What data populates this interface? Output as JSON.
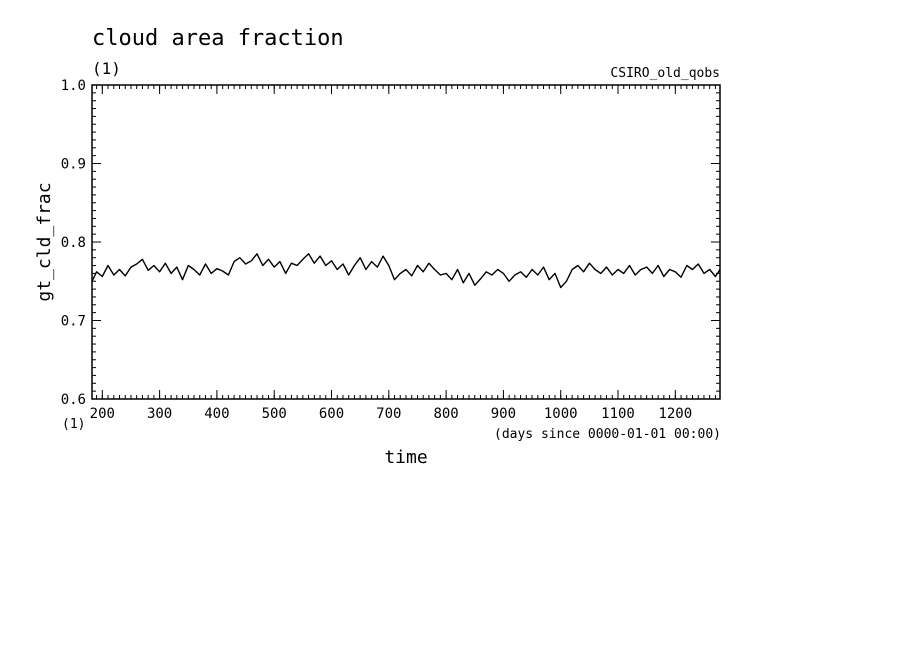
{
  "chart_data": {
    "type": "line",
    "title": "cloud area fraction",
    "units": "(1)",
    "dataset_label": "CSIRO_old_qobs",
    "xlabel": "time",
    "x_units": "(days since 0000-01-01 00:00)",
    "ylabel": "gt_cld_frac",
    "y_units": "(1)",
    "xlim": [
      182,
      1278
    ],
    "ylim": [
      0.6,
      1.0
    ],
    "x_ticks": [
      200,
      300,
      400,
      500,
      600,
      700,
      800,
      900,
      1000,
      1100,
      1200
    ],
    "y_ticks": [
      0.6,
      0.7,
      0.8,
      0.9,
      1.0
    ],
    "y_tick_labels": [
      "0.6",
      "0.7",
      "0.8",
      "0.9",
      "1.0"
    ],
    "grid": false,
    "series": [
      {
        "x": [
          182,
          190,
          200,
          210,
          220,
          230,
          240,
          250,
          260,
          270,
          280,
          290,
          300,
          310,
          320,
          330,
          340,
          350,
          360,
          370,
          380,
          390,
          400,
          410,
          420,
          430,
          440,
          450,
          460,
          470,
          480,
          490,
          500,
          510,
          520,
          530,
          540,
          550,
          560,
          570,
          580,
          590,
          600,
          610,
          620,
          630,
          640,
          650,
          660,
          670,
          680,
          690,
          700,
          710,
          720,
          730,
          740,
          750,
          760,
          770,
          780,
          790,
          800,
          810,
          820,
          830,
          840,
          850,
          860,
          870,
          880,
          890,
          900,
          910,
          920,
          930,
          940,
          950,
          960,
          970,
          980,
          990,
          1000,
          1010,
          1020,
          1030,
          1040,
          1050,
          1060,
          1070,
          1080,
          1090,
          1100,
          1110,
          1120,
          1130,
          1140,
          1150,
          1160,
          1170,
          1180,
          1190,
          1200,
          1210,
          1220,
          1230,
          1240,
          1250,
          1260,
          1270,
          1278
        ],
        "values": [
          0.75,
          0.762,
          0.756,
          0.77,
          0.758,
          0.765,
          0.757,
          0.768,
          0.772,
          0.778,
          0.764,
          0.77,
          0.762,
          0.773,
          0.76,
          0.768,
          0.752,
          0.77,
          0.765,
          0.758,
          0.772,
          0.76,
          0.766,
          0.763,
          0.758,
          0.775,
          0.78,
          0.772,
          0.776,
          0.785,
          0.77,
          0.778,
          0.768,
          0.775,
          0.76,
          0.773,
          0.77,
          0.778,
          0.785,
          0.773,
          0.782,
          0.77,
          0.776,
          0.765,
          0.772,
          0.758,
          0.77,
          0.78,
          0.765,
          0.775,
          0.768,
          0.782,
          0.77,
          0.752,
          0.76,
          0.765,
          0.757,
          0.77,
          0.762,
          0.773,
          0.765,
          0.758,
          0.76,
          0.752,
          0.765,
          0.748,
          0.76,
          0.745,
          0.753,
          0.762,
          0.758,
          0.765,
          0.76,
          0.75,
          0.758,
          0.762,
          0.755,
          0.765,
          0.758,
          0.768,
          0.752,
          0.76,
          0.742,
          0.75,
          0.765,
          0.77,
          0.762,
          0.773,
          0.765,
          0.76,
          0.768,
          0.758,
          0.765,
          0.76,
          0.77,
          0.758,
          0.765,
          0.768,
          0.76,
          0.77,
          0.756,
          0.765,
          0.762,
          0.755,
          0.77,
          0.765,
          0.772,
          0.76,
          0.765,
          0.756,
          0.765
        ]
      }
    ]
  },
  "colors": {
    "background": "#ffffff",
    "axes": "#000000",
    "line": "#000000"
  }
}
